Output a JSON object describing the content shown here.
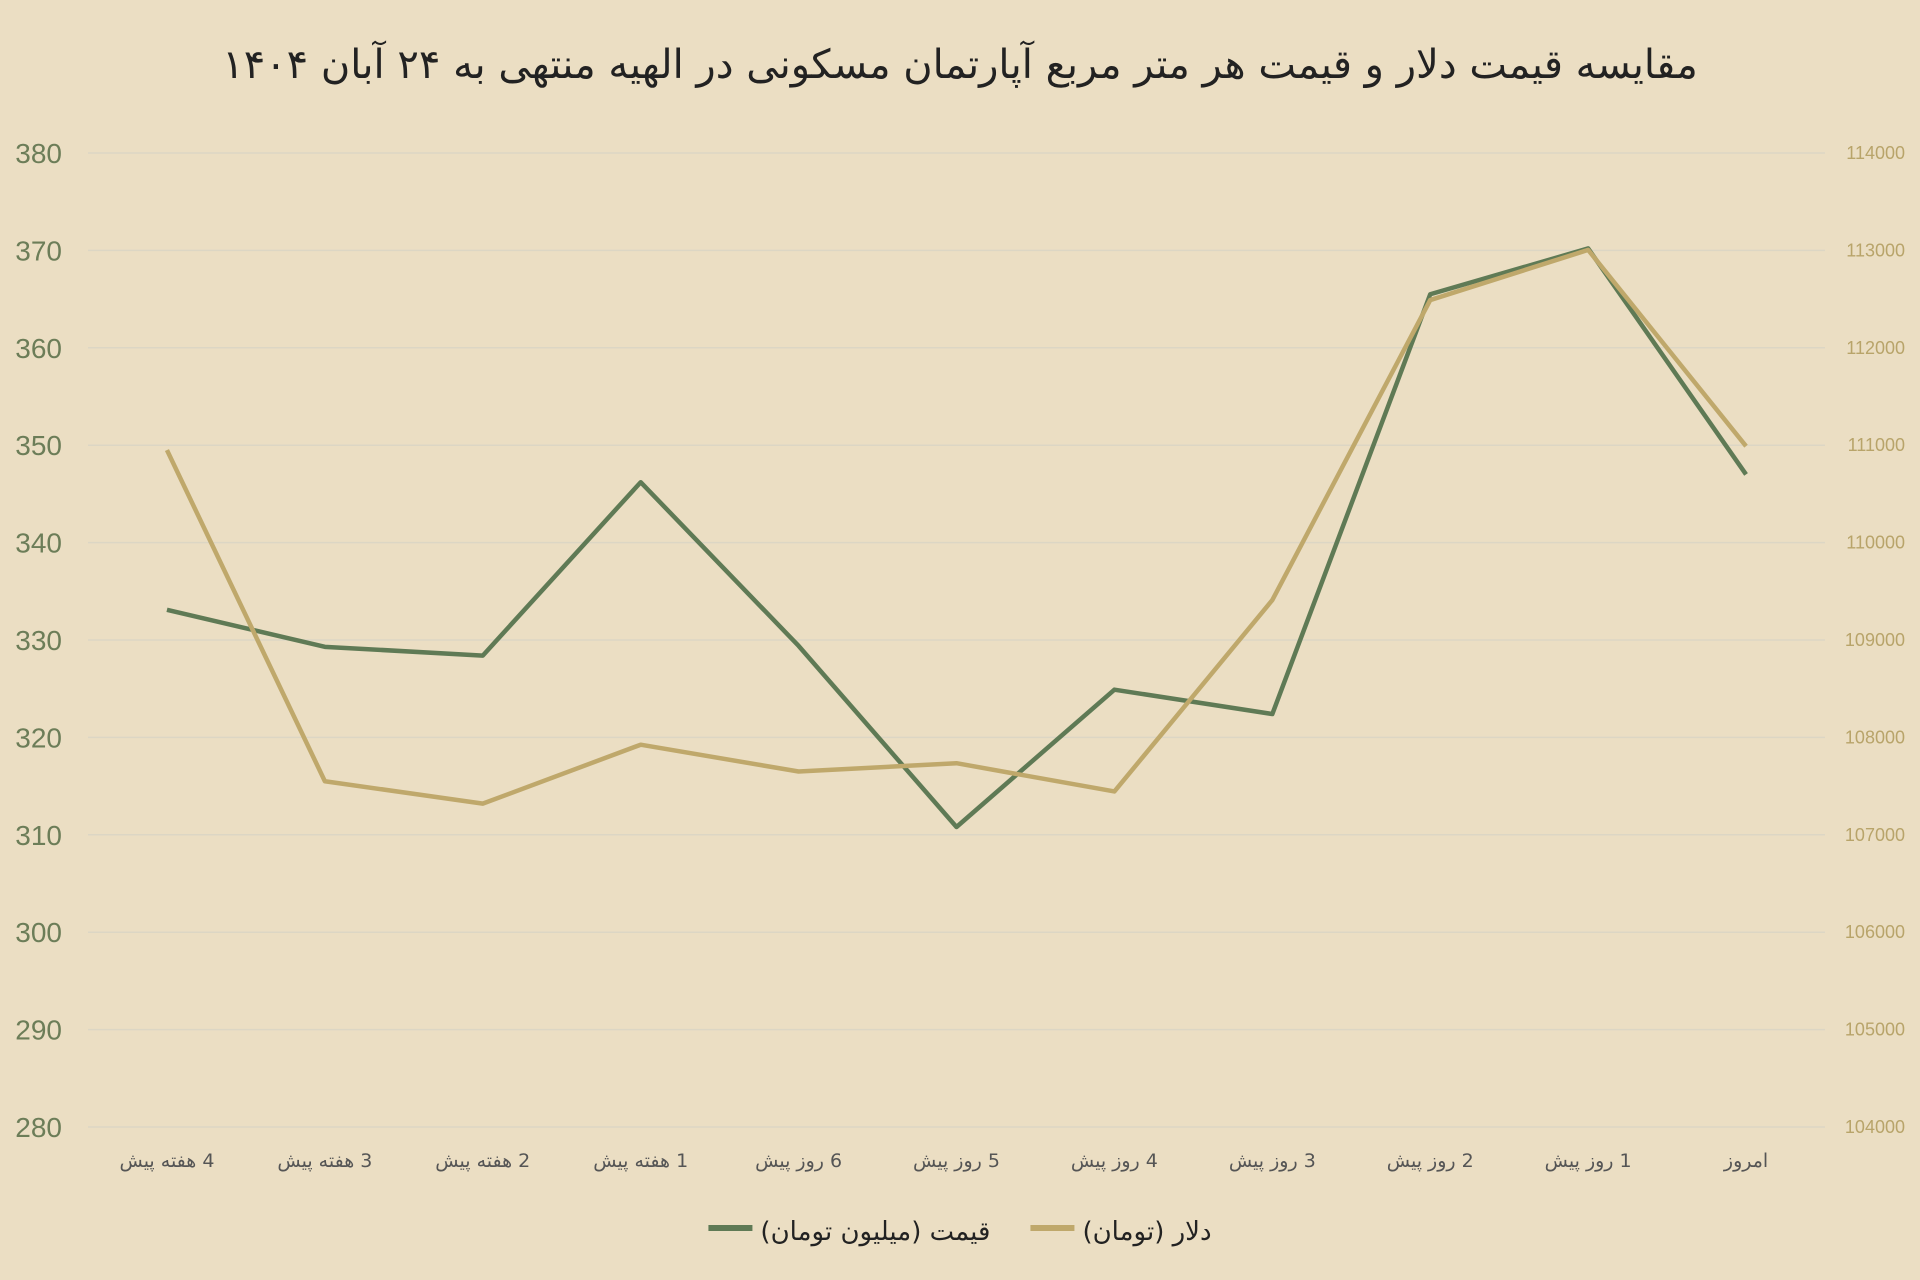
{
  "chart_data": {
    "type": "line",
    "title": "مقایسه قیمت دلار و قیمت هر متر مربع آپارتمان مسکونی در الهیه منتهی به ۲۴ آبان ۱۴۰۴",
    "categories": [
      "4 هفته پیش",
      "3 هفته پیش",
      "2 هفته پیش",
      "1 هفته پیش",
      "6 روز پیش",
      "5 روز پیش",
      "4 روز پیش",
      "3 روز پیش",
      "2 روز پیش",
      "1 روز پیش",
      "امروز"
    ],
    "y_left": {
      "range": [
        280,
        380
      ],
      "ticks": [
        280,
        290,
        300,
        310,
        320,
        330,
        340,
        350,
        360,
        370,
        380
      ]
    },
    "y_right": {
      "range": [
        104000,
        114000
      ],
      "ticks": [
        104000,
        105000,
        106000,
        107000,
        108000,
        109000,
        110000,
        111000,
        112000,
        113000,
        114000
      ]
    },
    "grid": true,
    "legend_position": "bottom",
    "series": [
      {
        "name": "قیمت (میلیون تومان)",
        "axis": "left",
        "color": "#5f7a55",
        "values": [
          333.1,
          329.3,
          328.4,
          346.2,
          329.4,
          310.8,
          324.9,
          322.4,
          365.5,
          370.2,
          347.0
        ]
      },
      {
        "name": "دلار (تومان)",
        "axis": "right",
        "color": "#bfa86b",
        "values": [
          110950,
          107550,
          107320,
          107925,
          107650,
          107735,
          107445,
          109410,
          112490,
          113005,
          110990
        ]
      }
    ]
  }
}
